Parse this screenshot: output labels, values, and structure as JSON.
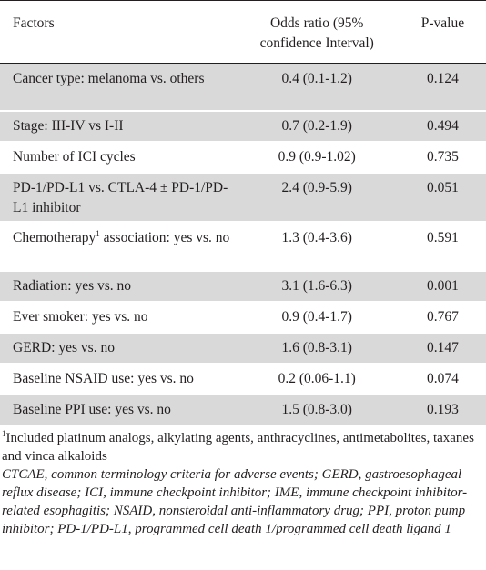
{
  "table": {
    "headers": {
      "factors": "Factors",
      "odds_ratio": "Odds ratio (95% confidence Interval)",
      "p_value": "P-value"
    },
    "rows": [
      {
        "factor": "Cancer type: melanoma vs. others",
        "odds": "0.4 (0.1-1.2)",
        "p": "0.124",
        "shaded": true
      },
      {
        "factor": "Stage: III-IV vs I-II",
        "odds": "0.7 (0.2-1.9)",
        "p": "0.494",
        "shaded": true
      },
      {
        "factor": "Number of ICI cycles",
        "odds": "0.9 (0.9-1.02)",
        "p": "0.735",
        "shaded": false
      },
      {
        "factor": "PD-1/PD-L1 vs. CTLA-4 ± PD-1/PD-L1 inhibitor",
        "odds": "2.4 (0.9-5.9)",
        "p": "0.051",
        "shaded": true
      },
      {
        "factor_pre": "Chemotherapy",
        "factor_sup": "1",
        "factor_post": " association: yes vs. no",
        "odds": "1.3 (0.4-3.6)",
        "p": "0.591",
        "shaded": false
      },
      {
        "factor": "Radiation: yes vs. no",
        "odds": "3.1 (1.6-6.3)",
        "p": "0.001",
        "shaded": true
      },
      {
        "factor": "Ever smoker: yes vs. no",
        "odds": "0.9 (0.4-1.7)",
        "p": "0.767",
        "shaded": false
      },
      {
        "factor": "GERD: yes vs. no",
        "odds": "1.6 (0.8-3.1)",
        "p": "0.147",
        "shaded": true
      },
      {
        "factor": "Baseline NSAID use: yes vs. no",
        "odds": "0.2 (0.06-1.1)",
        "p": "0.074",
        "shaded": false
      },
      {
        "factor": "Baseline PPI use: yes vs. no",
        "odds": "1.5 (0.8-3.0)",
        "p": "0.193",
        "shaded": true
      }
    ]
  },
  "notes": {
    "footnote_marker": "1",
    "footnote_text": "Included platinum analogs, alkylating agents, anthracyclines, antimetabolites, taxanes and vinca alkaloids",
    "abbreviations": "CTCAE, common terminology criteria for adverse events; GERD, gastroesophageal reflux disease; ICI, immune checkpoint inhibitor; IME, immune checkpoint inhibitor-related esophagitis; NSAID, nonsteroidal anti-inflammatory drug; PPI, proton pump inhibitor; PD-1/PD-L1, programmed cell death 1/programmed cell death ligand 1"
  }
}
